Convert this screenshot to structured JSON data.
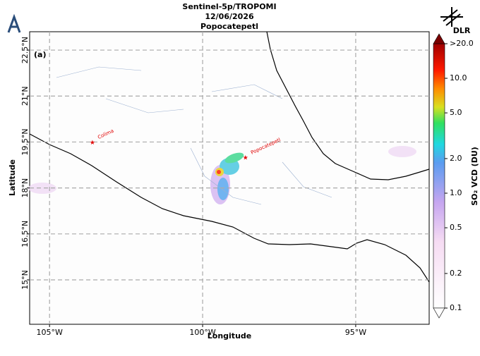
{
  "header": {
    "title": "Sentinel-5p/TROPOMI",
    "date": "12/06/2026",
    "subtitle": "Popocatepetl",
    "logo": "DLR"
  },
  "map": {
    "panel_label": "(a)",
    "xlabel": "Longitude",
    "ylabel": "Latitude",
    "xlim": [
      -105.65,
      -92.6
    ],
    "ylim": [
      13.55,
      23.1
    ],
    "xticks": [
      {
        "value": -105,
        "label": "105°W"
      },
      {
        "value": -100,
        "label": "100°W"
      },
      {
        "value": -95,
        "label": "95°W"
      }
    ],
    "yticks": [
      {
        "value": 15,
        "label": "15°N"
      },
      {
        "value": 16.5,
        "label": "16.5°N"
      },
      {
        "value": 18,
        "label": "18°N"
      },
      {
        "value": 19.5,
        "label": "19.5°N"
      },
      {
        "value": 21,
        "label": "21°N"
      },
      {
        "value": 22.5,
        "label": "22.5°N"
      }
    ],
    "grid": true,
    "places": [
      {
        "name": "Colima",
        "lon": -103.6,
        "lat": 19.5,
        "color": "#e00000"
      },
      {
        "name": "Popocatepetl",
        "lon": -98.6,
        "lat": 19.0,
        "color": "#e00000"
      }
    ]
  },
  "colorbar": {
    "label": "SO₂ VCD (DU)",
    "log": true,
    "lim": [
      0.1,
      20
    ],
    "ticks": [
      0.1,
      0.2,
      0.5,
      {
        "value": 1,
        "label": "1.0"
      },
      {
        "value": 2,
        "label": "2.0"
      },
      {
        "value": 5,
        "label": "5.0"
      },
      {
        "value": 10,
        "label": "10.0"
      },
      {
        "value": 20,
        "label": ">20.0"
      }
    ]
  }
}
